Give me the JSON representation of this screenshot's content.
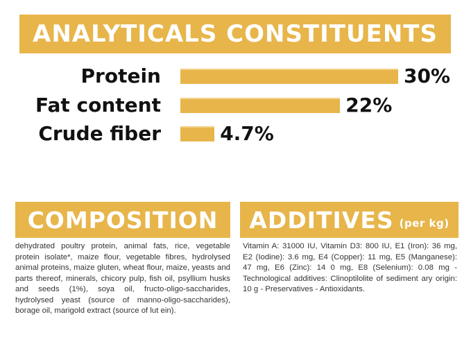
{
  "analytical": {
    "title": "ANALYTICALS CONSTITUENTS",
    "rows": [
      {
        "label": "Protein",
        "value_text": "30%",
        "value": 30
      },
      {
        "label": "Fat content",
        "value_text": "22%",
        "value": 22
      },
      {
        "label": "Crude fiber",
        "value_text": "4.7%",
        "value": 4.7
      }
    ]
  },
  "composition": {
    "title": "COMPOSITION",
    "text": "dehydrated poultry protein, animal fats, rice, vegetable protein isolate*, maize flour, vegetable fibres, hydrolysed animal proteins, maize gluten, wheat flour, maize, yeasts and parts thereof, minerals, chicory pulp, fish oil, psyllium husks and seeds (1%), soya oil, fructo-oligo-saccharides, hydrolysed yeast (source of manno-oligo-saccharides), borage oil, marigold extract (source of lut ein)."
  },
  "additives": {
    "title": "ADDITIVES",
    "subtitle": "(per kg)",
    "text": "Vitamin A: 31000 IU, Vitamin D3: 800 IU, E1 (Iron): 36 mg, E2 (Iodine): 3.6 mg, E4 (Copper): 11 mg, E5 (Manganese): 47 mg, E6 (Zinc): 14 0 mg, E8 (Selenium): 0.08 mg -Technological additives: Clinoptilolite of sediment ary origin: 10 g - Preservatives - Antioxidants."
  },
  "colors": {
    "accent": "#e7b54a",
    "text": "#111111"
  }
}
